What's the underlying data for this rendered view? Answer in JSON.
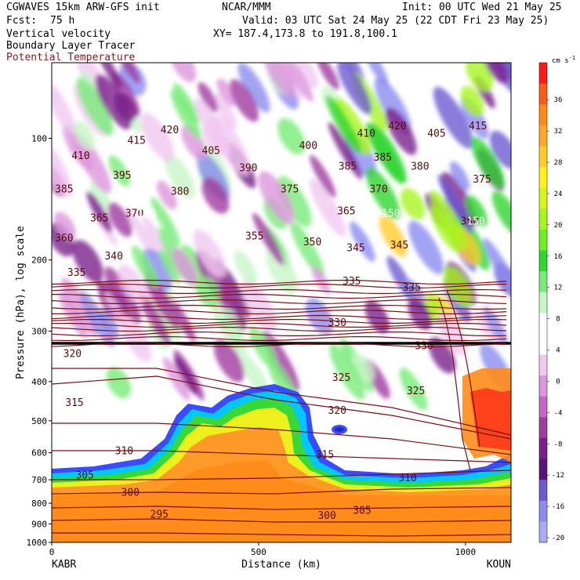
{
  "header": {
    "model_line": "CGWAVES 15km ARW-GFS init",
    "center": "NCAR/MMM",
    "init": "Init: 00 UTC Wed 21 May 25",
    "fcst_label": "Fcst:",
    "fcst_value": "75 h",
    "valid": "Valid: 03 UTC Sat 24 May 25 (22 CDT Fri 23 May 25)",
    "field1": "Vertical velocity",
    "field2": "Boundary Layer Tracer",
    "field3": "Potential Temperature",
    "xy": "XY= 187.4,173.8 to 191.8,100.1"
  },
  "colors": {
    "theta_contour": "#7a0f14",
    "field3_text": "#8b1a1a",
    "tropopause_line": "#000000"
  },
  "chart_data": {
    "type": "heatmap",
    "xlabel": "Distance (km)",
    "ylabel": "Pressure (hPa), log scale",
    "xlim": [
      0,
      1110
    ],
    "ylim": [
      1000,
      65
    ],
    "x_ticks": [
      0,
      500,
      1000
    ],
    "y_ticks": [
      100,
      200,
      300,
      400,
      500,
      600,
      700,
      800,
      900,
      1000
    ],
    "left_station": "KABR",
    "right_station": "KOUN",
    "colorbar": {
      "unit": "cm s-1",
      "tick_labels": [
        "36",
        "32",
        "28",
        "24",
        "20",
        "16",
        "12",
        "8",
        "4",
        "0",
        "-4",
        "-8",
        "-12",
        "-16",
        "-20"
      ],
      "colors": [
        "#ff1a1a",
        "#ff5a1a",
        "#ff8c1a",
        "#ffa828",
        "#ffcc2a",
        "#fff01e",
        "#d6f51e",
        "#a8f51e",
        "#6cf01e",
        "#2ed62e",
        "#78eb78",
        "#c8f5c8",
        "#ffffff",
        "#ffffff",
        "#f0c8f0",
        "#dc96dc",
        "#c864c8",
        "#a03ca0",
        "#7a1e8c",
        "#5a1478",
        "#6e5ad2",
        "#8c8cf0",
        "#aaaaf5"
      ]
    },
    "theta_labels": [
      {
        "text": "420",
        "x": 285,
        "p": 95
      },
      {
        "text": "415",
        "x": 205,
        "p": 101
      },
      {
        "text": "410",
        "x": 70,
        "p": 110
      },
      {
        "text": "405",
        "x": 385,
        "p": 107
      },
      {
        "text": "400",
        "x": 620,
        "p": 104
      },
      {
        "text": "410",
        "x": 760,
        "p": 97
      },
      {
        "text": "420",
        "x": 835,
        "p": 93
      },
      {
        "text": "405",
        "x": 930,
        "p": 97
      },
      {
        "text": "415",
        "x": 1030,
        "p": 93
      },
      {
        "text": "395",
        "x": 170,
        "p": 123
      },
      {
        "text": "390",
        "x": 475,
        "p": 118
      },
      {
        "text": "385",
        "x": 30,
        "p": 133
      },
      {
        "text": "385",
        "x": 715,
        "p": 117
      },
      {
        "text": "385",
        "x": 800,
        "p": 111
      },
      {
        "text": "380",
        "x": 310,
        "p": 135
      },
      {
        "text": "380",
        "x": 890,
        "p": 117
      },
      {
        "text": "375",
        "x": 575,
        "p": 133
      },
      {
        "text": "375",
        "x": 1040,
        "p": 126
      },
      {
        "text": "370",
        "x": 200,
        "p": 153
      },
      {
        "text": "370",
        "x": 790,
        "p": 133
      },
      {
        "text": "365",
        "x": 115,
        "p": 157
      },
      {
        "text": "365",
        "x": 712,
        "p": 151
      },
      {
        "text": "360",
        "x": 30,
        "p": 176
      },
      {
        "text": "355",
        "x": 490,
        "p": 174
      },
      {
        "text": "350",
        "x": 630,
        "p": 180
      },
      {
        "text": "350",
        "x": 1010,
        "p": 160
      },
      {
        "text": "345",
        "x": 735,
        "p": 186
      },
      {
        "text": "345",
        "x": 840,
        "p": 183
      },
      {
        "text": "340",
        "x": 150,
        "p": 195
      },
      {
        "text": "335",
        "x": 60,
        "p": 214
      },
      {
        "text": "335",
        "x": 725,
        "p": 225
      },
      {
        "text": "335",
        "x": 870,
        "p": 233
      },
      {
        "text": "330",
        "x": 690,
        "p": 285
      },
      {
        "text": "330",
        "x": 900,
        "p": 325
      },
      {
        "text": "325",
        "x": 700,
        "p": 390
      },
      {
        "text": "325",
        "x": 880,
        "p": 420
      },
      {
        "text": "320",
        "x": 50,
        "p": 340
      },
      {
        "text": "320",
        "x": 690,
        "p": 470
      },
      {
        "text": "315",
        "x": 55,
        "p": 450
      },
      {
        "text": "315",
        "x": 660,
        "p": 605
      },
      {
        "text": "310",
        "x": 175,
        "p": 592
      },
      {
        "text": "310",
        "x": 860,
        "p": 690
      },
      {
        "text": "305",
        "x": 80,
        "p": 680
      },
      {
        "text": "305",
        "x": 750,
        "p": 830
      },
      {
        "text": "300",
        "x": 190,
        "p": 750
      },
      {
        "text": "300",
        "x": 665,
        "p": 855
      },
      {
        "text": "295",
        "x": 260,
        "p": 850
      }
    ],
    "tropopause_labels": [
      {
        "text": "150",
        "x": 230,
        "p": 153
      },
      {
        "text": "150",
        "x": 820,
        "p": 153
      },
      {
        "text": "150",
        "x": 1025,
        "p": 160
      }
    ]
  }
}
